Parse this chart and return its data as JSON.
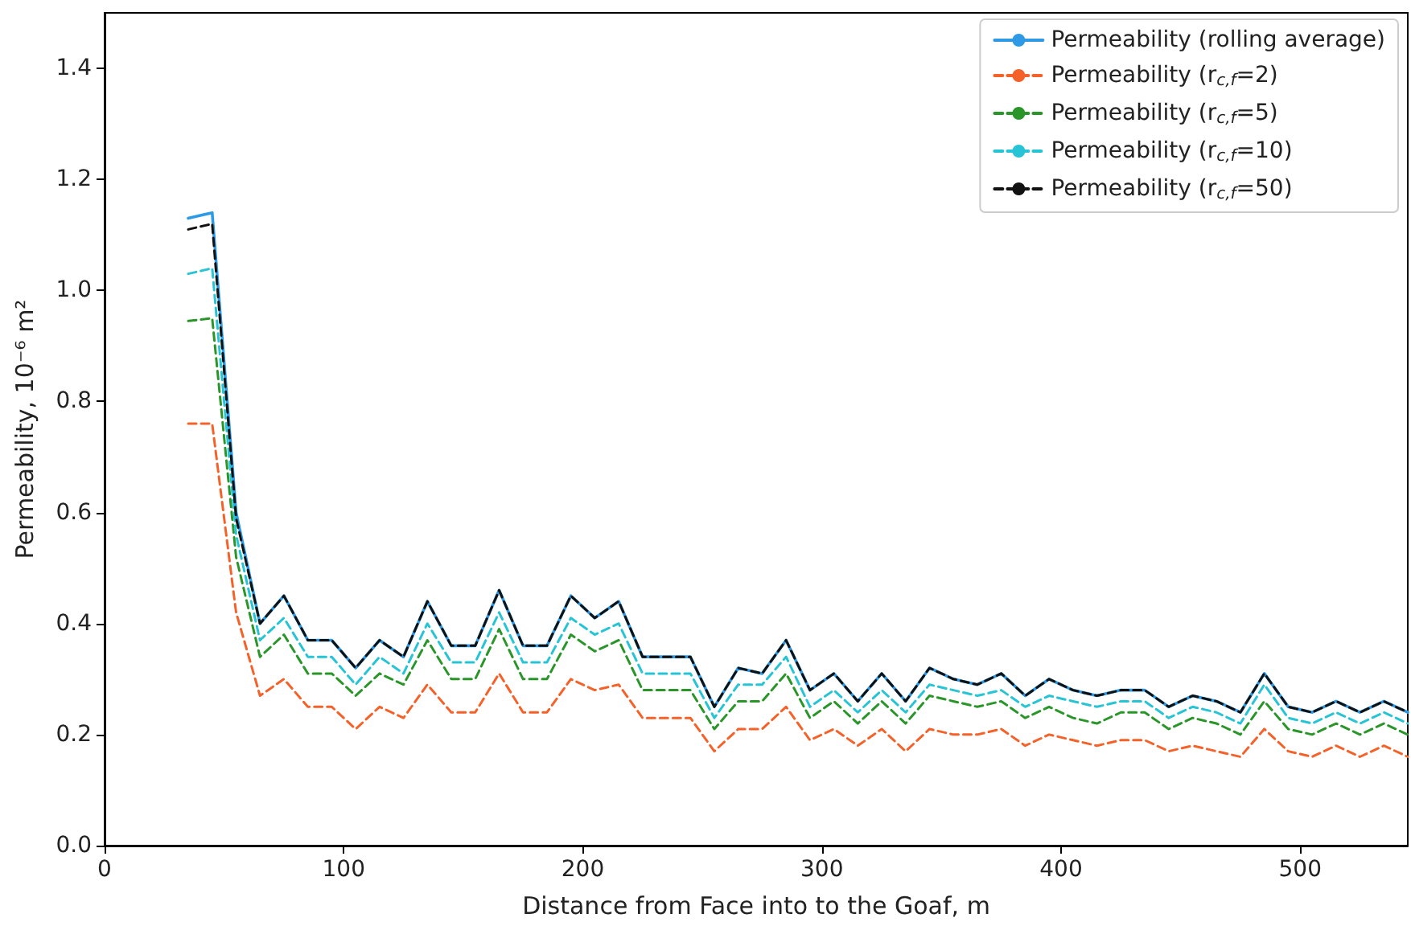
{
  "chart_data": {
    "type": "line",
    "xlabel": "Distance from Face into to the Goaf, m",
    "ylabel": "Permeability, 10⁻⁶ m²",
    "x": [
      35,
      45,
      55,
      65,
      75,
      85,
      95,
      105,
      115,
      125,
      135,
      145,
      155,
      165,
      175,
      185,
      195,
      205,
      215,
      225,
      235,
      245,
      255,
      265,
      275,
      285,
      295,
      305,
      315,
      325,
      335,
      345,
      355,
      365,
      375,
      385,
      395,
      405,
      415,
      425,
      435,
      445,
      455,
      465,
      475,
      485,
      495,
      505,
      515,
      525,
      535,
      545
    ],
    "series": [
      {
        "name": "Permeability (rolling average)",
        "color": "#2e9ae6",
        "line_style": "solid",
        "values": [
          1.13,
          1.14,
          0.6,
          0.4,
          0.45,
          0.37,
          0.37,
          0.32,
          0.37,
          0.34,
          0.44,
          0.36,
          0.36,
          0.46,
          0.36,
          0.36,
          0.45,
          0.41,
          0.44,
          0.34,
          0.34,
          0.34,
          0.25,
          0.32,
          0.31,
          0.37,
          0.28,
          0.31,
          0.26,
          0.31,
          0.26,
          0.32,
          0.3,
          0.29,
          0.31,
          0.27,
          0.3,
          0.28,
          0.27,
          0.28,
          0.28,
          0.25,
          0.27,
          0.26,
          0.24,
          0.31,
          0.25,
          0.24,
          0.26,
          0.24,
          0.26,
          0.24
        ]
      },
      {
        "name": "Permeability (r$_{c,f}$=2)",
        "color": "#f4622a",
        "line_style": "dashed",
        "values": [
          0.76,
          0.76,
          0.42,
          0.27,
          0.3,
          0.25,
          0.25,
          0.21,
          0.25,
          0.23,
          0.29,
          0.24,
          0.24,
          0.31,
          0.24,
          0.24,
          0.3,
          0.28,
          0.29,
          0.23,
          0.23,
          0.23,
          0.17,
          0.21,
          0.21,
          0.25,
          0.19,
          0.21,
          0.18,
          0.21,
          0.17,
          0.21,
          0.2,
          0.2,
          0.21,
          0.18,
          0.2,
          0.19,
          0.18,
          0.19,
          0.19,
          0.17,
          0.18,
          0.17,
          0.16,
          0.21,
          0.17,
          0.16,
          0.18,
          0.16,
          0.18,
          0.16
        ]
      },
      {
        "name": "Permeability (r$_{c,f}$=5)",
        "color": "#2a962a",
        "line_style": "dashed",
        "values": [
          0.945,
          0.95,
          0.52,
          0.34,
          0.38,
          0.31,
          0.31,
          0.27,
          0.31,
          0.29,
          0.37,
          0.3,
          0.3,
          0.39,
          0.3,
          0.3,
          0.38,
          0.35,
          0.37,
          0.28,
          0.28,
          0.28,
          0.21,
          0.26,
          0.26,
          0.31,
          0.23,
          0.26,
          0.22,
          0.26,
          0.22,
          0.27,
          0.26,
          0.25,
          0.26,
          0.23,
          0.25,
          0.23,
          0.22,
          0.24,
          0.24,
          0.21,
          0.23,
          0.22,
          0.2,
          0.26,
          0.21,
          0.2,
          0.22,
          0.2,
          0.22,
          0.2
        ]
      },
      {
        "name": "Permeability (r$_{c,f}$=10)",
        "color": "#26c4d4",
        "line_style": "dashed",
        "values": [
          1.03,
          1.04,
          0.56,
          0.37,
          0.41,
          0.34,
          0.34,
          0.29,
          0.34,
          0.31,
          0.4,
          0.33,
          0.33,
          0.42,
          0.33,
          0.33,
          0.41,
          0.38,
          0.4,
          0.31,
          0.31,
          0.31,
          0.23,
          0.29,
          0.29,
          0.34,
          0.25,
          0.28,
          0.24,
          0.28,
          0.24,
          0.29,
          0.28,
          0.27,
          0.28,
          0.25,
          0.27,
          0.26,
          0.25,
          0.26,
          0.26,
          0.23,
          0.25,
          0.24,
          0.22,
          0.29,
          0.23,
          0.22,
          0.24,
          0.22,
          0.24,
          0.22
        ]
      },
      {
        "name": "Permeability (r$_{c,f}$=50)",
        "color": "#111111",
        "line_style": "dashed",
        "values": [
          1.11,
          1.12,
          0.59,
          0.4,
          0.45,
          0.37,
          0.37,
          0.32,
          0.37,
          0.34,
          0.44,
          0.36,
          0.36,
          0.46,
          0.36,
          0.36,
          0.45,
          0.41,
          0.44,
          0.34,
          0.34,
          0.34,
          0.25,
          0.32,
          0.31,
          0.37,
          0.28,
          0.31,
          0.26,
          0.31,
          0.26,
          0.32,
          0.3,
          0.29,
          0.31,
          0.27,
          0.3,
          0.28,
          0.27,
          0.28,
          0.28,
          0.25,
          0.27,
          0.26,
          0.24,
          0.31,
          0.25,
          0.24,
          0.26,
          0.24,
          0.26,
          0.24
        ]
      }
    ],
    "xlim": [
      0,
      545
    ],
    "xticks": [
      0,
      100,
      200,
      300,
      400,
      500
    ],
    "ylim": [
      0,
      1.5
    ],
    "yticks": [
      {
        "value": 0,
        "label": "0.0"
      },
      {
        "value": 0.2,
        "label": "0.2"
      },
      {
        "value": 0.4,
        "label": "0.4"
      },
      {
        "value": 0.6,
        "label": "0.6"
      },
      {
        "value": 0.8,
        "label": "0.8"
      },
      {
        "value": 1.0,
        "label": "1.0"
      },
      {
        "value": 1.2,
        "label": "1.2"
      },
      {
        "value": 1.4,
        "label": "1.4"
      }
    ],
    "grid": false,
    "legend": "top right",
    "marker": "none"
  }
}
